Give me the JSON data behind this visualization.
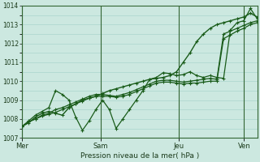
{
  "xlabel": "Pression niveau de la mer( hPa )",
  "ylim": [
    1007,
    1014
  ],
  "yticks": [
    1007,
    1008,
    1009,
    1010,
    1011,
    1012,
    1013,
    1014
  ],
  "day_labels": [
    "Mer",
    "Sam",
    "Jeu",
    "Ven"
  ],
  "bg_color": "#cce8e0",
  "grid_color": "#aad4cc",
  "vline_color": "#336633",
  "line_color": "#1a5c1a",
  "series": [
    [
      1007.6,
      1007.8,
      1008.1,
      1008.3,
      1008.4,
      1008.3,
      1008.2,
      1008.6,
      1008.8,
      1009.0,
      1009.1,
      1009.2,
      1009.35,
      1009.5,
      1009.6,
      1009.7,
      1009.8,
      1009.9,
      1010.0,
      1010.1,
      1010.15,
      1010.2,
      1010.3,
      1010.5,
      1011.0,
      1011.5,
      1012.1,
      1012.5,
      1012.8,
      1013.0,
      1013.1,
      1013.2,
      1013.3,
      1013.4,
      1013.6,
      1013.4
    ],
    [
      1007.6,
      1007.9,
      1008.2,
      1008.4,
      1008.6,
      1009.5,
      1009.3,
      1009.0,
      1008.1,
      1007.4,
      1007.9,
      1008.5,
      1009.0,
      1008.5,
      1007.5,
      1008.0,
      1008.5,
      1009.0,
      1009.5,
      1010.1,
      1010.2,
      1010.45,
      1010.4,
      1010.3,
      1010.35,
      1010.5,
      1010.3,
      1010.2,
      1010.3,
      1010.2,
      1010.15,
      1012.7,
      1013.1,
      1013.2,
      1013.85,
      1013.3
    ],
    [
      1007.6,
      1007.85,
      1008.0,
      1008.2,
      1008.3,
      1008.5,
      1008.6,
      1008.75,
      1008.9,
      1009.05,
      1009.2,
      1009.3,
      1009.3,
      1009.25,
      1009.2,
      1009.3,
      1009.4,
      1009.55,
      1009.7,
      1009.85,
      1010.0,
      1010.05,
      1010.05,
      1010.0,
      1009.95,
      1010.0,
      1010.05,
      1010.1,
      1010.15,
      1010.1,
      1012.5,
      1012.65,
      1012.8,
      1012.95,
      1013.1,
      1013.2
    ],
    [
      1007.6,
      1007.85,
      1008.0,
      1008.15,
      1008.25,
      1008.35,
      1008.5,
      1008.65,
      1008.8,
      1008.95,
      1009.1,
      1009.2,
      1009.2,
      1009.2,
      1009.15,
      1009.2,
      1009.3,
      1009.45,
      1009.6,
      1009.75,
      1009.9,
      1009.95,
      1009.95,
      1009.9,
      1009.85,
      1009.9,
      1009.9,
      1009.95,
      1010.0,
      1010.0,
      1012.25,
      1012.45,
      1012.65,
      1012.8,
      1013.0,
      1013.1
    ]
  ],
  "n_x": 36,
  "xlim": [
    0,
    36
  ]
}
